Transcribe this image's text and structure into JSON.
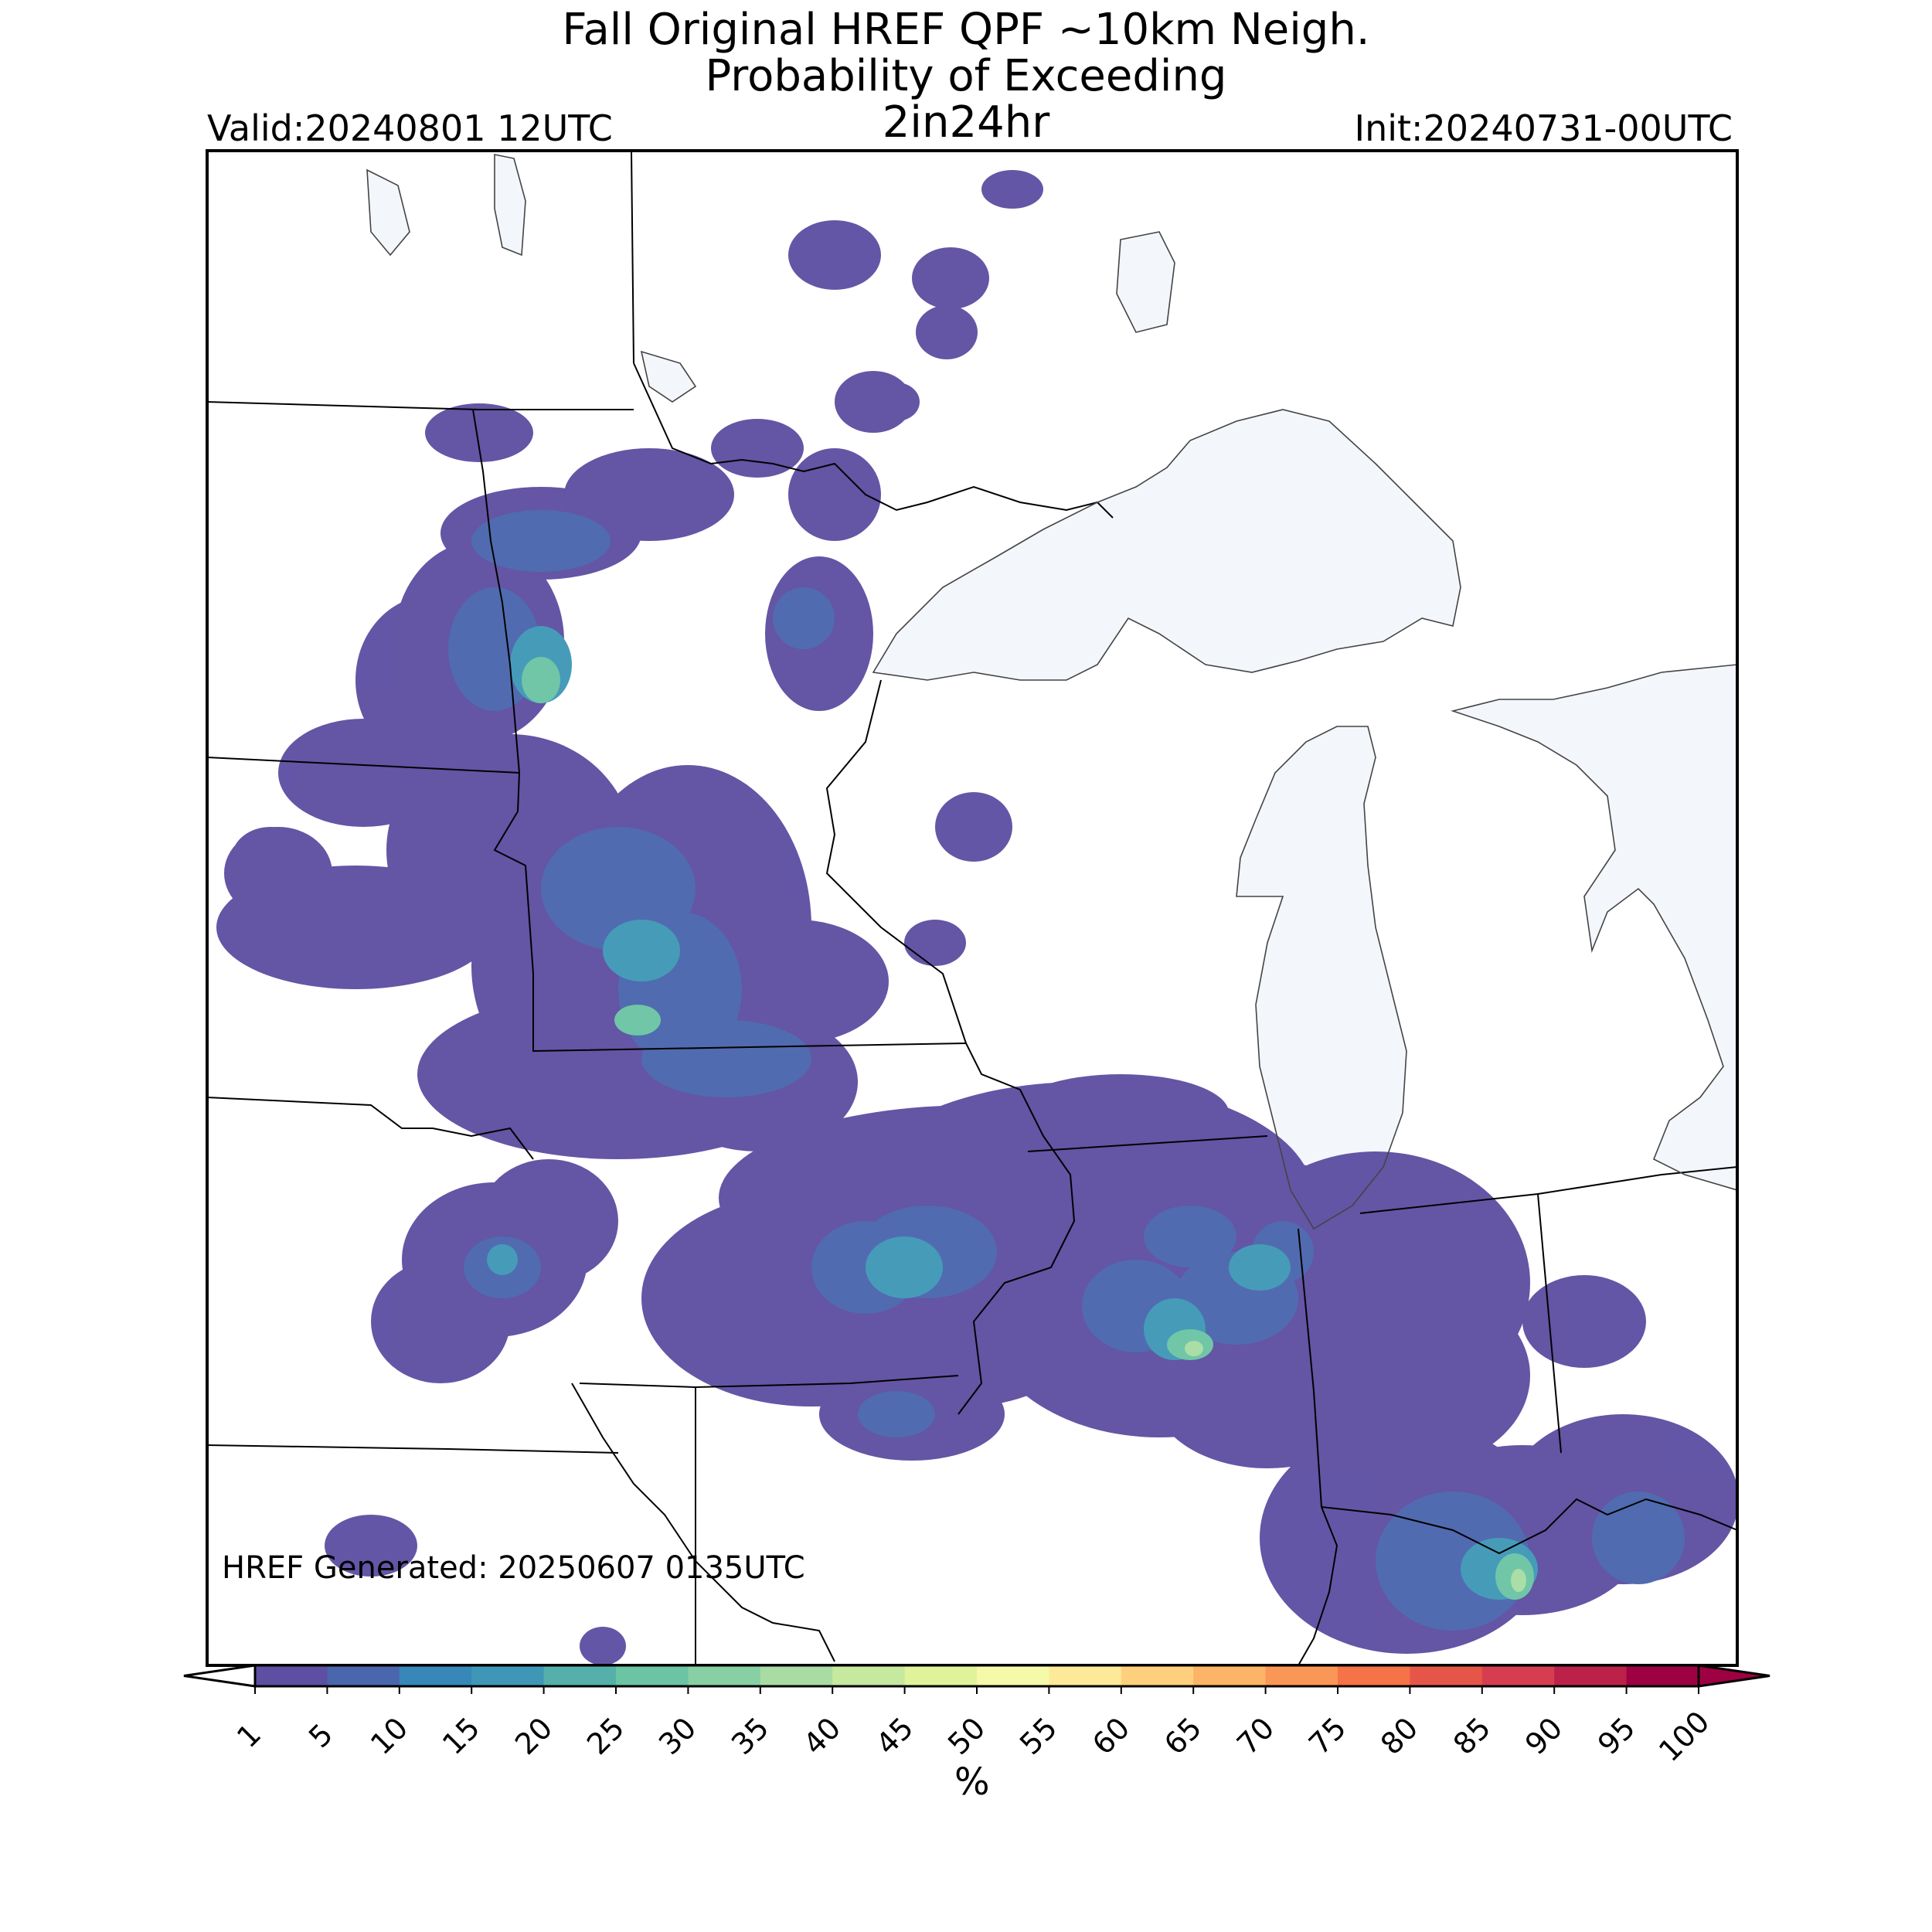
{
  "title": {
    "line1": "Fall Original HREF QPF ~10km Neigh.",
    "line2": "Probability of Exceeding",
    "line3": "2in24hr"
  },
  "valid": "Valid:20240801 12UTC",
  "init": "Init:20240731-00UTC",
  "generated": "HREF Generated: 20250607 0135UTC",
  "colorbar": {
    "levels": [
      "1",
      "5",
      "10",
      "15",
      "20",
      "25",
      "30",
      "35",
      "40",
      "45",
      "50",
      "55",
      "60",
      "65",
      "70",
      "75",
      "80",
      "85",
      "90",
      "95",
      "100"
    ],
    "colors": [
      "#5e4fa2",
      "#4a66ad",
      "#3787b9",
      "#3f97b7",
      "#55b0aa",
      "#6bc4a4",
      "#88cfa4",
      "#a8dca3",
      "#c6e89f",
      "#e0f39a",
      "#f5f9aa",
      "#fee999",
      "#fed07e",
      "#fdb466",
      "#fa9656",
      "#f57347",
      "#e65648",
      "#d63e4f",
      "#bc2249",
      "#9e0142"
    ],
    "units": "%"
  },
  "map": {
    "water_color": "#f3f6fb",
    "border_color": "#000000",
    "prob_colors": {
      "low": "#5e4fa2",
      "mid": "#4a66ad",
      "high": "#3f97b7",
      "peak": "#6bc4a4",
      "max": "#a8dca3"
    }
  }
}
